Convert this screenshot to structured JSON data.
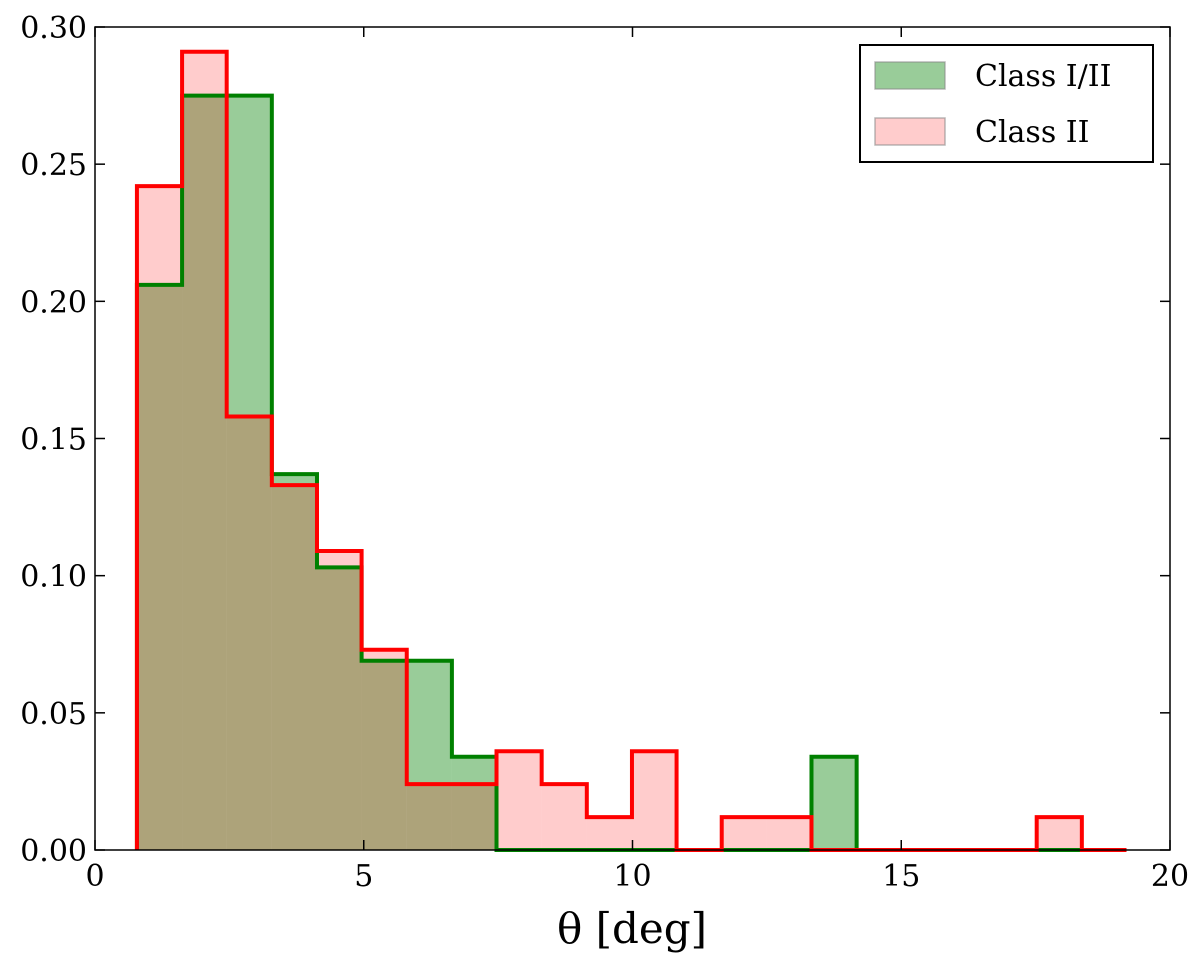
{
  "chart_data": {
    "type": "histogram",
    "xlabel": "θ [deg]",
    "bins": [
      0.78,
      1.62,
      2.45,
      3.29,
      4.13,
      4.96,
      5.8,
      6.64,
      7.47,
      8.31,
      9.15,
      9.99,
      10.82,
      11.66,
      12.5,
      13.33,
      14.17,
      15.01,
      15.85,
      16.68,
      17.52,
      18.36,
      19.19
    ],
    "series": [
      {
        "name": "Class I/II",
        "color": "#008000",
        "fill_opacity": 0.4,
        "values": [
          0.206,
          0.275,
          0.275,
          0.137,
          0.103,
          0.069,
          0.069,
          0.034,
          0,
          0,
          0,
          0,
          0,
          0,
          0,
          0.034,
          0,
          0,
          0,
          0,
          0,
          0
        ]
      },
      {
        "name": "Class II",
        "color": "#ff0000",
        "fill_opacity": 0.2,
        "values": [
          0.242,
          0.291,
          0.158,
          0.133,
          0.109,
          0.073,
          0.024,
          0.024,
          0.036,
          0.024,
          0.012,
          0.036,
          0,
          0.012,
          0.012,
          0,
          0,
          0,
          0,
          0,
          0.012,
          0
        ]
      }
    ],
    "xlim": [
      0,
      20
    ],
    "xticks": [
      0,
      5,
      10,
      15,
      20
    ],
    "ylim": [
      0,
      0.3
    ],
    "yticks": [
      {
        "value": 0,
        "label": "0.00"
      },
      {
        "value": 0.05,
        "label": "0.05"
      },
      {
        "value": 0.1,
        "label": "0.10"
      },
      {
        "value": 0.15,
        "label": "0.15"
      },
      {
        "value": 0.2,
        "label": "0.20"
      },
      {
        "value": 0.25,
        "label": "0.25"
      },
      {
        "value": 0.3,
        "label": "0.30"
      }
    ],
    "legend": "upper right",
    "grid": false
  }
}
